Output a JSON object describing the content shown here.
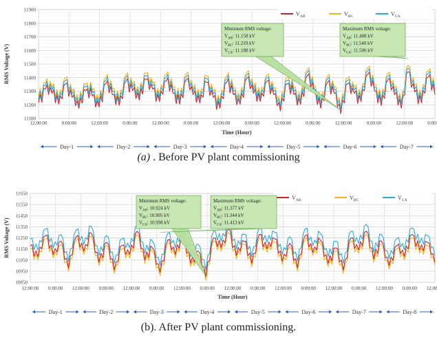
{
  "chart_data": [
    {
      "type": "line",
      "ylabel": "RMS Voltage (V)",
      "xlabel": "Time (Hour)",
      "ylim": [
        11100,
        11900
      ],
      "yticks": [
        11100,
        11200,
        11300,
        11400,
        11500,
        11600,
        11700,
        11800,
        11900
      ],
      "xtick_labels": [
        "12:00:00",
        "0:00:00",
        "12:00:00",
        "0:00:00",
        "12:00:00",
        "0:00:00",
        "12:00:00",
        "0:00:00",
        "12:00:00",
        "0:00:00",
        "12:00:00",
        "0:00:00",
        "12:00:00",
        "0:00:00"
      ],
      "days": [
        "Day-1",
        "Day-2",
        "Day-3",
        "Day-4",
        "Day-5",
        "Day-6",
        "Day-7"
      ],
      "grid": true,
      "legend_position": "top-right",
      "series": [
        {
          "name": "V_AB",
          "color": "#d0202a",
          "offset": -25,
          "values": [
            11240,
            11340,
            11310,
            11230,
            11380,
            11280,
            11200,
            11330,
            11290,
            11210,
            11380,
            11300,
            11220,
            11400,
            11330,
            11260,
            11410,
            11340,
            11250,
            11400,
            11310,
            11230,
            11410,
            11300,
            11240,
            11390,
            11280,
            11200,
            11390,
            11300,
            11230,
            11420,
            11310,
            11250,
            11400,
            11300,
            11180,
            11380,
            11300,
            11230,
            11440,
            11320,
            11200,
            11390,
            11310,
            11160,
            11380,
            11310,
            11250,
            11450,
            11330,
            11220,
            11410,
            11300,
            11200,
            11470,
            11320,
            11240,
            11430,
            11300
          ]
        },
        {
          "name": "V_BC",
          "color": "#f5b21a",
          "offset": 20,
          "values": [
            11240,
            11340,
            11310,
            11230,
            11380,
            11280,
            11200,
            11330,
            11290,
            11210,
            11380,
            11300,
            11220,
            11400,
            11330,
            11260,
            11410,
            11340,
            11250,
            11400,
            11310,
            11230,
            11410,
            11300,
            11240,
            11390,
            11280,
            11200,
            11390,
            11300,
            11230,
            11420,
            11310,
            11250,
            11400,
            11300,
            11180,
            11380,
            11300,
            11230,
            11440,
            11320,
            11200,
            11390,
            11310,
            11160,
            11380,
            11310,
            11250,
            11450,
            11330,
            11220,
            11410,
            11300,
            11200,
            11470,
            11320,
            11240,
            11430,
            11300
          ]
        },
        {
          "name": "V_CA",
          "color": "#2aa8d8",
          "offset": 0,
          "values": [
            11240,
            11340,
            11310,
            11230,
            11380,
            11280,
            11200,
            11330,
            11290,
            11210,
            11380,
            11300,
            11220,
            11400,
            11330,
            11260,
            11410,
            11340,
            11250,
            11400,
            11310,
            11230,
            11410,
            11300,
            11240,
            11390,
            11280,
            11200,
            11390,
            11300,
            11230,
            11420,
            11310,
            11250,
            11400,
            11300,
            11180,
            11380,
            11300,
            11230,
            11440,
            11320,
            11200,
            11390,
            11310,
            11160,
            11380,
            11310,
            11250,
            11450,
            11330,
            11220,
            11410,
            11300,
            11200,
            11470,
            11320,
            11240,
            11430,
            11300
          ]
        }
      ],
      "annotations": [
        {
          "lines": [
            "Minimum RMS voltage:",
            "V_AB: 11.158 kV",
            "V_BC: 11.219 kV",
            "V_CA: 11.188 kV"
          ],
          "target_index": 45
        },
        {
          "lines": [
            "Maximum RMS voltage:",
            "V_AB: 11.488 kV",
            "V_BC: 11.540 kV",
            "V_CA: 11.506 kV"
          ],
          "target_index": 55
        }
      ]
    },
    {
      "type": "line",
      "ylabel": "RMS Voltage (V)",
      "xlabel": "Time (Hour)",
      "ylim": [
        10850,
        11650
      ],
      "yticks": [
        10850,
        10950,
        11050,
        11150,
        11250,
        11350,
        11450,
        11550,
        11650
      ],
      "xtick_labels": [
        "12:00:00",
        "0:00:00",
        "12:00:00",
        "0:00:00",
        "12:00:00",
        "0:00:00",
        "12:00:00",
        "0:00:00",
        "12:00:00",
        "0:00:00",
        "12:00:00",
        "0:00:00",
        "12:00:00",
        "0:00:00",
        "12:00:00",
        "0:00:00",
        "12:00:00"
      ],
      "days": [
        "Day-1",
        "Day-2",
        "Day-3",
        "Day-4",
        "Day-5",
        "Day-6",
        "Day-7",
        "Day-8"
      ],
      "grid": true,
      "legend_position": "top-right",
      "series": [
        {
          "name": "V_AB",
          "color": "#d0202a",
          "offset": -20,
          "values": [
            11200,
            11100,
            11290,
            11120,
            11240,
            11000,
            11280,
            11150,
            11310,
            11050,
            11230,
            10980,
            11200,
            11120,
            11330,
            11070,
            11180,
            10960,
            11250,
            11120,
            11290,
            11040,
            11150,
            10920,
            11270,
            11180,
            11350,
            11110,
            11240,
            11040,
            11300,
            11170,
            11260,
            11060,
            11220,
            11000,
            11290,
            11140,
            11250,
            11040,
            11180,
            10980,
            11270,
            11160,
            11330,
            11080,
            11240,
            11020,
            11200,
            11100,
            11300,
            11160,
            11230,
            11050
          ]
        },
        {
          "name": "V_BC",
          "color": "#f5b21a",
          "offset": -50,
          "values": [
            11200,
            11100,
            11290,
            11120,
            11240,
            11000,
            11280,
            11150,
            11310,
            11050,
            11230,
            10980,
            11200,
            11120,
            11330,
            11070,
            11180,
            10960,
            11250,
            11120,
            11290,
            11040,
            11150,
            10920,
            11270,
            11180,
            11350,
            11110,
            11240,
            11040,
            11300,
            11170,
            11260,
            11060,
            11220,
            11000,
            11290,
            11140,
            11250,
            11040,
            11180,
            10980,
            11270,
            11160,
            11330,
            11080,
            11240,
            11020,
            11200,
            11100,
            11300,
            11160,
            11230,
            11050
          ]
        },
        {
          "name": "V_CA",
          "color": "#2aa8d8",
          "offset": 40,
          "values": [
            11200,
            11100,
            11290,
            11120,
            11240,
            11000,
            11280,
            11150,
            11310,
            11050,
            11230,
            10980,
            11200,
            11120,
            11330,
            11070,
            11180,
            10960,
            11250,
            11120,
            11290,
            11040,
            11150,
            10920,
            11270,
            11180,
            11350,
            11110,
            11240,
            11040,
            11300,
            11170,
            11260,
            11060,
            11220,
            11000,
            11290,
            11140,
            11250,
            11040,
            11180,
            10980,
            11270,
            11160,
            11330,
            11080,
            11240,
            11020,
            11200,
            11100,
            11300,
            11160,
            11230,
            11050
          ]
        }
      ],
      "annotations": [
        {
          "lines": [
            "Minimum RMS voltage:",
            "V_AB: 10.924 kV",
            "V_BC: 10.905 kV",
            "V_CA: 10.998 kV"
          ],
          "target_index": 23
        },
        {
          "lines": [
            "Maximum RMS voltage:",
            "V_AB: 11.377 kV",
            "V_BC: 11.344 kV",
            "V_CA: 11.413 kV"
          ],
          "target_index": 17
        }
      ]
    }
  ],
  "captions": {
    "a_label": "(a)",
    "a_text": " . Before PV plant commissioning",
    "b_text": "(b). After PV plant commissioning."
  }
}
